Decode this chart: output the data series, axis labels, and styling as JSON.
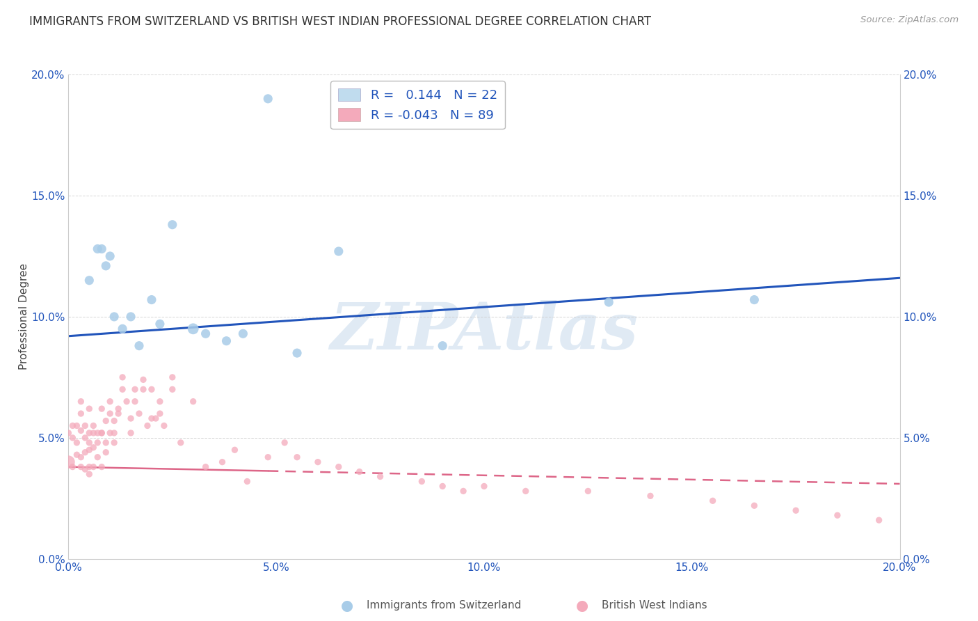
{
  "title": "IMMIGRANTS FROM SWITZERLAND VS BRITISH WEST INDIAN PROFESSIONAL DEGREE CORRELATION CHART",
  "source": "Source: ZipAtlas.com",
  "ylabel": "Professional Degree",
  "watermark": "ZIPAtlas",
  "xlim": [
    0.0,
    0.2
  ],
  "ylim": [
    0.0,
    0.2
  ],
  "xticks": [
    0.0,
    0.05,
    0.1,
    0.15,
    0.2
  ],
  "yticks": [
    0.0,
    0.05,
    0.1,
    0.15,
    0.2
  ],
  "xticklabels": [
    "0.0%",
    "5.0%",
    "10.0%",
    "15.0%",
    "20.0%"
  ],
  "yticklabels": [
    "0.0%",
    "5.0%",
    "10.0%",
    "15.0%",
    "20.0%"
  ],
  "swiss_color": "#A8CCE8",
  "bwi_color": "#F4AABB",
  "swiss_line_color": "#2255BB",
  "bwi_line_color": "#DD6688",
  "legend_swiss_color": "#C0DCEE",
  "legend_bwi_color": "#F4AABB",
  "swiss_R": 0.144,
  "swiss_N": 22,
  "bwi_R": -0.043,
  "bwi_N": 89,
  "swiss_line_x0": 0.0,
  "swiss_line_y0": 0.092,
  "swiss_line_x1": 0.2,
  "swiss_line_y1": 0.116,
  "bwi_line_x0": 0.0,
  "bwi_line_y0": 0.038,
  "bwi_line_solid_end": 0.048,
  "bwi_line_x1": 0.2,
  "bwi_line_y1": 0.031,
  "swiss_x": [
    0.005,
    0.008,
    0.009,
    0.01,
    0.011,
    0.013,
    0.015,
    0.017,
    0.02,
    0.022,
    0.025,
    0.03,
    0.033,
    0.038,
    0.042,
    0.048,
    0.055,
    0.065,
    0.09,
    0.13,
    0.165,
    0.007
  ],
  "swiss_y": [
    0.115,
    0.128,
    0.121,
    0.125,
    0.1,
    0.095,
    0.1,
    0.088,
    0.107,
    0.097,
    0.138,
    0.095,
    0.093,
    0.09,
    0.093,
    0.19,
    0.085,
    0.127,
    0.088,
    0.106,
    0.107,
    0.128
  ],
  "bwi_x": [
    0.0,
    0.001,
    0.001,
    0.002,
    0.002,
    0.003,
    0.003,
    0.003,
    0.004,
    0.004,
    0.004,
    0.005,
    0.005,
    0.005,
    0.005,
    0.006,
    0.006,
    0.007,
    0.007,
    0.008,
    0.008,
    0.008,
    0.009,
    0.009,
    0.01,
    0.01,
    0.011,
    0.011,
    0.012,
    0.013,
    0.014,
    0.015,
    0.016,
    0.017,
    0.018,
    0.019,
    0.02,
    0.021,
    0.022,
    0.023,
    0.025,
    0.027,
    0.03,
    0.033,
    0.037,
    0.04,
    0.043,
    0.048,
    0.052,
    0.055,
    0.06,
    0.065,
    0.07,
    0.075,
    0.085,
    0.09,
    0.095,
    0.1,
    0.11,
    0.125,
    0.14,
    0.155,
    0.165,
    0.175,
    0.185,
    0.195,
    0.0,
    0.001,
    0.002,
    0.003,
    0.003,
    0.004,
    0.005,
    0.005,
    0.006,
    0.006,
    0.007,
    0.008,
    0.009,
    0.01,
    0.011,
    0.012,
    0.013,
    0.015,
    0.016,
    0.018,
    0.02,
    0.022,
    0.025
  ],
  "bwi_y": [
    0.04,
    0.05,
    0.038,
    0.055,
    0.043,
    0.06,
    0.053,
    0.038,
    0.05,
    0.044,
    0.037,
    0.062,
    0.052,
    0.045,
    0.035,
    0.055,
    0.046,
    0.052,
    0.042,
    0.062,
    0.052,
    0.038,
    0.057,
    0.044,
    0.065,
    0.052,
    0.057,
    0.048,
    0.06,
    0.075,
    0.065,
    0.058,
    0.07,
    0.06,
    0.074,
    0.055,
    0.07,
    0.058,
    0.065,
    0.055,
    0.075,
    0.048,
    0.065,
    0.038,
    0.04,
    0.045,
    0.032,
    0.042,
    0.048,
    0.042,
    0.04,
    0.038,
    0.036,
    0.034,
    0.032,
    0.03,
    0.028,
    0.03,
    0.028,
    0.028,
    0.026,
    0.024,
    0.022,
    0.02,
    0.018,
    0.016,
    0.052,
    0.055,
    0.048,
    0.065,
    0.042,
    0.055,
    0.048,
    0.038,
    0.052,
    0.038,
    0.048,
    0.052,
    0.048,
    0.06,
    0.052,
    0.062,
    0.07,
    0.052,
    0.065,
    0.07,
    0.058,
    0.06,
    0.07
  ],
  "bwi_large_x": [
    0.0
  ],
  "bwi_large_y": [
    0.04
  ],
  "background_color": "#FFFFFF",
  "grid_color": "#CCCCCC",
  "title_color": "#333333",
  "tick_color": "#2255BB",
  "watermark_color": "#CCDDEE",
  "watermark_alpha": 0.6
}
